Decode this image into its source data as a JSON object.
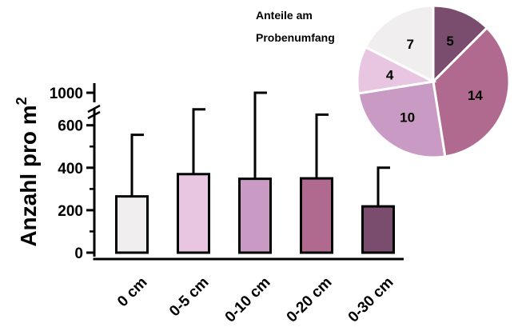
{
  "chart_data": [
    {
      "type": "bar",
      "categories": [
        "0 cm",
        "0-5 cm",
        "0-10 cm",
        "0-20 cm",
        "0-30 cm"
      ],
      "values": [
        265,
        370,
        348,
        350,
        218
      ],
      "error_upper": [
        555,
        675,
        1000,
        650,
        400
      ],
      "colors": [
        "#f0eeee",
        "#e8c6e1",
        "#c99ac3",
        "#b06a8f",
        "#7a4c6e"
      ],
      "ylabel": "Anzahl pro m",
      "ylabel_superscript": "2",
      "ylim": [
        0,
        1000
      ],
      "axis_break": [
        700,
        950
      ],
      "y_ticks": [
        {
          "value": 0,
          "label": "0"
        },
        {
          "value": 200,
          "label": "200"
        },
        {
          "value": 400,
          "label": "400"
        },
        {
          "value": 600,
          "label": "600"
        },
        {
          "value": 1000,
          "label": "1000"
        }
      ],
      "grid": false,
      "legend": "none"
    },
    {
      "type": "pie",
      "title_lines": [
        "Anteile am",
        "Probenumfang"
      ],
      "slices": [
        {
          "value": 5,
          "label": "5",
          "color": "#7a4c6e"
        },
        {
          "value": 14,
          "label": "14",
          "color": "#b06a8f"
        },
        {
          "value": 10,
          "label": "10",
          "color": "#c99ac3"
        },
        {
          "value": 4,
          "label": "4",
          "color": "#e8c6e1"
        },
        {
          "value": 7,
          "label": "7",
          "color": "#f0eeee"
        }
      ]
    }
  ]
}
